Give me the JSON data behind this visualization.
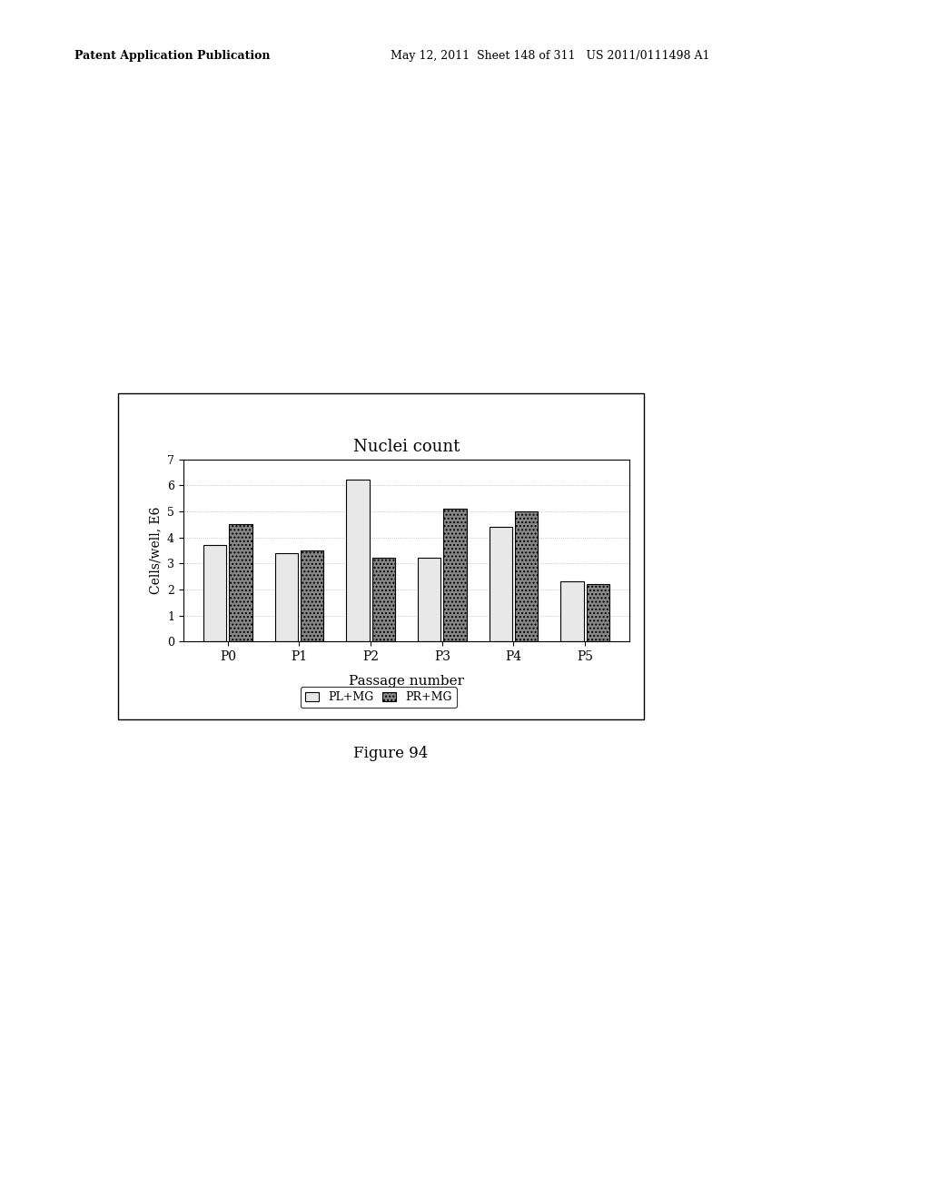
{
  "title": "Nuclei count",
  "xlabel": "Passage number",
  "ylabel": "Cells/well, E6",
  "categories": [
    "P0",
    "P1",
    "P2",
    "P3",
    "P4",
    "P5"
  ],
  "pl_mg": [
    3.7,
    3.4,
    6.2,
    3.2,
    4.4,
    2.3
  ],
  "pr_mg": [
    4.5,
    3.5,
    3.2,
    5.1,
    5.0,
    2.2
  ],
  "bar_color_pl": "#e8e8e8",
  "bar_color_pr": "#888888",
  "bar_edge_color": "#000000",
  "ylim": [
    0,
    7
  ],
  "yticks": [
    0,
    1,
    2,
    3,
    4,
    5,
    6,
    7
  ],
  "legend_labels": [
    "PL+MG",
    "PR+MG"
  ],
  "figure_width": 10.24,
  "figure_height": 13.2,
  "dpi": 100,
  "header_line1": "Patent Application Publication",
  "header_line2": "May 12, 2011  Sheet 148 of 311   US 2011/0111498 A1",
  "footer_text": "Figure 94"
}
